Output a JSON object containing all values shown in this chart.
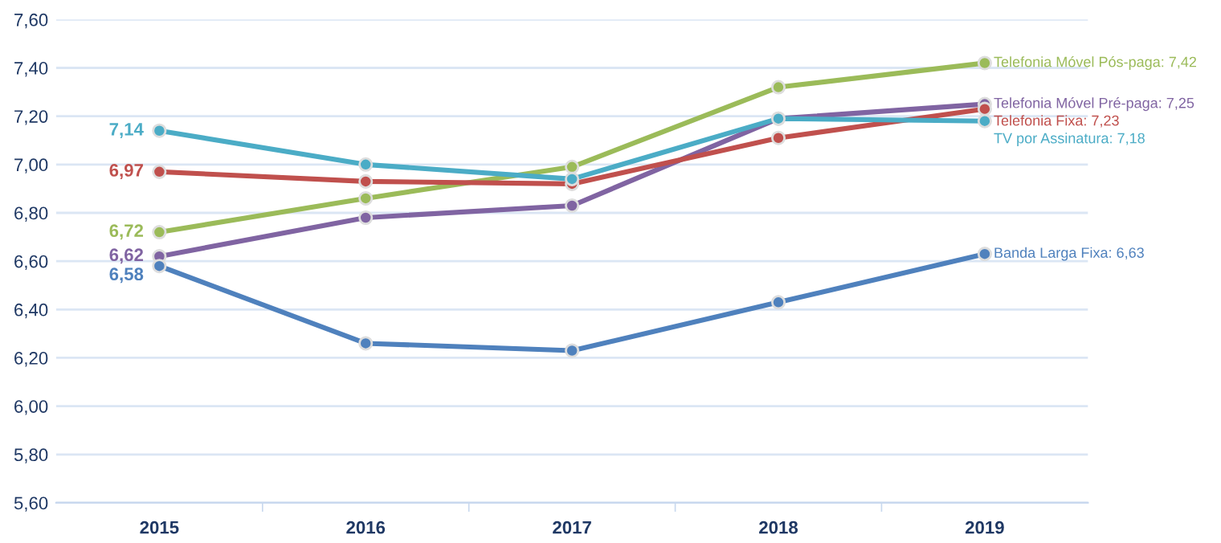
{
  "chart_data": {
    "type": "line",
    "categories": [
      "2015",
      "2016",
      "2017",
      "2018",
      "2019"
    ],
    "series": [
      {
        "color": "#9bbb59",
        "values": [
          6.72,
          6.86,
          6.99,
          7.32,
          7.42
        ],
        "value_labels": [
          "6,72",
          null,
          null,
          null,
          null
        ]
      },
      {
        "color": "#8064a2",
        "values": [
          6.62,
          6.78,
          6.83,
          7.19,
          7.25
        ],
        "value_labels": [
          "6,62",
          null,
          null,
          null,
          null
        ]
      },
      {
        "color": "#c0504d",
        "values": [
          6.97,
          6.93,
          6.92,
          7.11,
          7.23
        ],
        "value_labels": [
          "6,97",
          null,
          null,
          null,
          null
        ]
      },
      {
        "color": "#4bacc6",
        "values": [
          7.14,
          7.0,
          6.94,
          7.19,
          7.18
        ],
        "value_labels": [
          "7,14",
          null,
          null,
          null,
          null
        ]
      },
      {
        "color": "#4f81bd",
        "values": [
          6.58,
          6.26,
          6.23,
          6.43,
          6.63
        ],
        "value_labels": [
          "6,58",
          null,
          null,
          null,
          null
        ]
      }
    ],
    "annotations": [
      {
        "text": "Telefonia Móvel Pós-paga: 7,42",
        "x": "2019",
        "y": 7.42
      },
      {
        "text": "Telefonia Móvel Pré-paga: 7,25",
        "x": "2019",
        "y": 7.25
      },
      {
        "text": "Telefonia Fixa: 7,23",
        "x": "2019",
        "y": 7.23
      },
      {
        "text": "TV por Assinatura: 7,18",
        "x": "2019",
        "y": 7.18
      },
      {
        "text": "Banda Larga Fixa: 6,63",
        "x": "2019",
        "y": 6.63
      }
    ],
    "ylim": [
      5.6,
      7.6
    ],
    "yticks": [
      {
        "value": 5.6,
        "label": "5,60"
      },
      {
        "value": 5.8,
        "label": "5,80"
      },
      {
        "value": 6.0,
        "label": "6,00"
      },
      {
        "value": 6.2,
        "label": "6,20"
      },
      {
        "value": 6.4,
        "label": "6,40"
      },
      {
        "value": 6.6,
        "label": "6,60"
      },
      {
        "value": 6.8,
        "label": "6,80"
      },
      {
        "value": 7.0,
        "label": "7,00"
      },
      {
        "value": 7.2,
        "label": "7,20"
      },
      {
        "value": 7.4,
        "label": "7,40"
      },
      {
        "value": 7.6,
        "label": "7,60"
      }
    ],
    "grid": "y",
    "marker": "circle",
    "line_style": "solid",
    "legend": false
  }
}
